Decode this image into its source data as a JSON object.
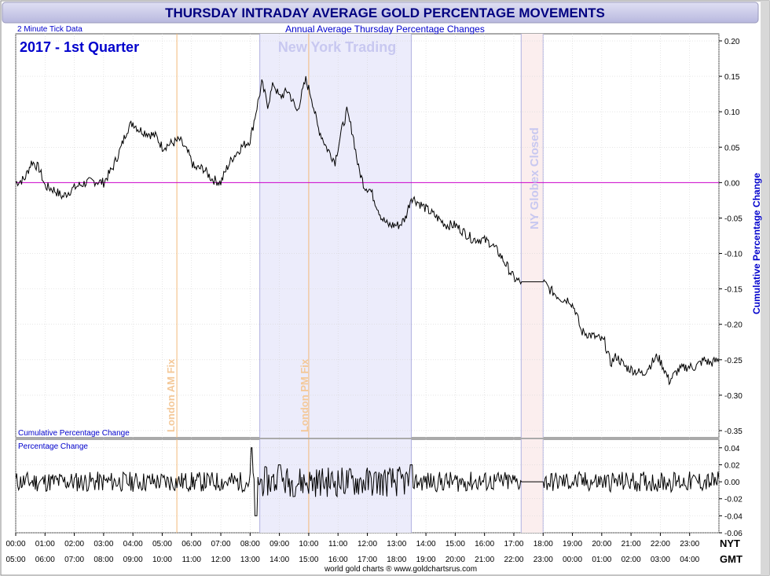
{
  "title": "THURSDAY INTRADAY AVERAGE GOLD PERCENTAGE MOVEMENTS",
  "subtitle": "Annual Average Thursday Percentage Changes",
  "tick_note": "2 Minute Tick Data",
  "period": "2017 - 1st Quarter",
  "credit": "world gold charts ® www.goldchartsrus.com",
  "upper_panel_label": "Cumulative Percentage Change",
  "lower_panel_label": "Percentage Change",
  "y_axis_title": "Cumulative Percentage Change",
  "nyt_label": "NYT",
  "gmt_label": "GMT",
  "regions": {
    "new_york": "New York Trading",
    "globex": "NY Globex Closed"
  },
  "markers": {
    "am_fix": "London AM Fix",
    "pm_fix": "London PM Fix"
  },
  "colors": {
    "title_bar": "#c9c9e8",
    "title_text": "#000080",
    "label_blue": "#0000cc",
    "ny_region": "#ececfb",
    "globex_region": "#fbeeee",
    "fix_line": "#f2b978",
    "zero_line": "#cc00cc",
    "series": "#000000"
  },
  "chart_data": [
    {
      "type": "line",
      "title": "Cumulative Percentage Change",
      "x_unit": "hours NYT",
      "xlim": [
        0,
        24
      ],
      "ylim": [
        -0.36,
        0.21
      ],
      "y_ticks": [
        0.2,
        0.15,
        0.1,
        0.05,
        0.0,
        -0.05,
        -0.1,
        -0.15,
        -0.2,
        -0.25,
        -0.3,
        -0.35
      ],
      "y_tick_labels": [
        "0.20",
        "0.15",
        "0.10",
        "0.05",
        "0.00",
        "-0.05",
        "-0.10",
        "-0.15",
        "-0.20",
        "-0.25",
        "-0.30",
        "-0.35"
      ],
      "x_ticks_nyt": [
        "00:00",
        "01:00",
        "02:00",
        "03:00",
        "04:00",
        "05:00",
        "06:00",
        "07:00",
        "08:00",
        "09:00",
        "10:00",
        "11:00",
        "12:00",
        "13:00",
        "14:00",
        "15:00",
        "16:00",
        "17:00",
        "18:00",
        "19:00",
        "20:00",
        "21:00",
        "22:00",
        "23:00"
      ],
      "x_ticks_gmt": [
        "05:00",
        "06:00",
        "07:00",
        "08:00",
        "09:00",
        "10:00",
        "11:00",
        "12:00",
        "13:00",
        "14:00",
        "15:00",
        "16:00",
        "17:00",
        "18:00",
        "19:00",
        "20:00",
        "21:00",
        "22:00",
        "23:00",
        "00:00",
        "01:00",
        "02:00",
        "03:00",
        "04:00"
      ],
      "ny_trading_hours": [
        8.33,
        13.5
      ],
      "globex_closed_hours": [
        17.25,
        18.0
      ],
      "am_fix_hour": 5.5,
      "pm_fix_hour": 10.0,
      "grid": true,
      "points": [
        [
          0,
          0.0
        ],
        [
          0.3,
          0.005
        ],
        [
          0.55,
          0.03
        ],
        [
          0.8,
          0.02
        ],
        [
          1.0,
          -0.005
        ],
        [
          1.3,
          -0.01
        ],
        [
          1.6,
          -0.02
        ],
        [
          1.9,
          -0.01
        ],
        [
          2.1,
          -0.005
        ],
        [
          2.4,
          0.0
        ],
        [
          2.7,
          0.002
        ],
        [
          3.0,
          0.0
        ],
        [
          3.3,
          0.02
        ],
        [
          3.6,
          0.05
        ],
        [
          3.8,
          0.075
        ],
        [
          4.0,
          0.085
        ],
        [
          4.2,
          0.075
        ],
        [
          4.5,
          0.07
        ],
        [
          4.8,
          0.065
        ],
        [
          5.0,
          0.05
        ],
        [
          5.3,
          0.055
        ],
        [
          5.6,
          0.06
        ],
        [
          5.9,
          0.04
        ],
        [
          6.1,
          0.02
        ],
        [
          6.4,
          0.02
        ],
        [
          6.7,
          0.005
        ],
        [
          7.0,
          0.0
        ],
        [
          7.2,
          0.02
        ],
        [
          7.4,
          0.035
        ],
        [
          7.7,
          0.05
        ],
        [
          8.0,
          0.06
        ],
        [
          8.2,
          0.1
        ],
        [
          8.4,
          0.14
        ],
        [
          8.6,
          0.11
        ],
        [
          8.8,
          0.14
        ],
        [
          9.0,
          0.12
        ],
        [
          9.3,
          0.13
        ],
        [
          9.6,
          0.1
        ],
        [
          9.9,
          0.145
        ],
        [
          10.1,
          0.12
        ],
        [
          10.3,
          0.08
        ],
        [
          10.6,
          0.05
        ],
        [
          10.9,
          0.03
        ],
        [
          11.1,
          0.07
        ],
        [
          11.3,
          0.1
        ],
        [
          11.5,
          0.07
        ],
        [
          11.7,
          0.02
        ],
        [
          11.9,
          -0.005
        ],
        [
          12.1,
          -0.01
        ],
        [
          12.3,
          -0.03
        ],
        [
          12.5,
          -0.05
        ],
        [
          12.7,
          -0.06
        ],
        [
          12.9,
          -0.06
        ],
        [
          13.1,
          -0.06
        ],
        [
          13.3,
          -0.05
        ],
        [
          13.5,
          -0.02
        ],
        [
          13.8,
          -0.03
        ],
        [
          14.1,
          -0.04
        ],
        [
          14.4,
          -0.05
        ],
        [
          14.7,
          -0.06
        ],
        [
          15.0,
          -0.06
        ],
        [
          15.3,
          -0.07
        ],
        [
          15.6,
          -0.08
        ],
        [
          15.9,
          -0.08
        ],
        [
          16.2,
          -0.085
        ],
        [
          16.5,
          -0.1
        ],
        [
          16.8,
          -0.12
        ],
        [
          17.0,
          -0.135
        ],
        [
          17.2,
          -0.14
        ],
        [
          17.5,
          -0.14
        ],
        [
          18.0,
          -0.14
        ],
        [
          18.2,
          -0.15
        ],
        [
          18.5,
          -0.16
        ],
        [
          18.7,
          -0.165
        ],
        [
          18.9,
          -0.165
        ],
        [
          19.1,
          -0.18
        ],
        [
          19.3,
          -0.21
        ],
        [
          19.6,
          -0.215
        ],
        [
          19.9,
          -0.22
        ],
        [
          20.1,
          -0.225
        ],
        [
          20.3,
          -0.255
        ],
        [
          20.5,
          -0.245
        ],
        [
          20.8,
          -0.26
        ],
        [
          21.1,
          -0.265
        ],
        [
          21.4,
          -0.27
        ],
        [
          21.7,
          -0.255
        ],
        [
          21.9,
          -0.245
        ],
        [
          22.1,
          -0.26
        ],
        [
          22.3,
          -0.28
        ],
        [
          22.6,
          -0.265
        ],
        [
          22.9,
          -0.26
        ],
        [
          23.2,
          -0.26
        ],
        [
          23.5,
          -0.25
        ],
        [
          23.7,
          -0.255
        ],
        [
          24.0,
          -0.25
        ]
      ]
    },
    {
      "type": "line",
      "title": "Percentage Change",
      "x_unit": "hours NYT",
      "xlim": [
        0,
        24
      ],
      "ylim": [
        -0.06,
        0.05
      ],
      "y_ticks": [
        0.04,
        0.02,
        0.0,
        -0.02,
        -0.04,
        -0.06
      ],
      "y_tick_labels": [
        "0.04",
        "0.02",
        "0.00",
        "-0.02",
        "-0.04",
        "-0.06"
      ],
      "grid": true,
      "typical_abs_change": 0.012,
      "peak_changes": [
        [
          8.05,
          0.04
        ],
        [
          8.2,
          -0.04
        ],
        [
          9.0,
          0.02
        ],
        [
          13.5,
          0.02
        ]
      ],
      "flat_interval": [
        17.25,
        18.0
      ]
    }
  ]
}
